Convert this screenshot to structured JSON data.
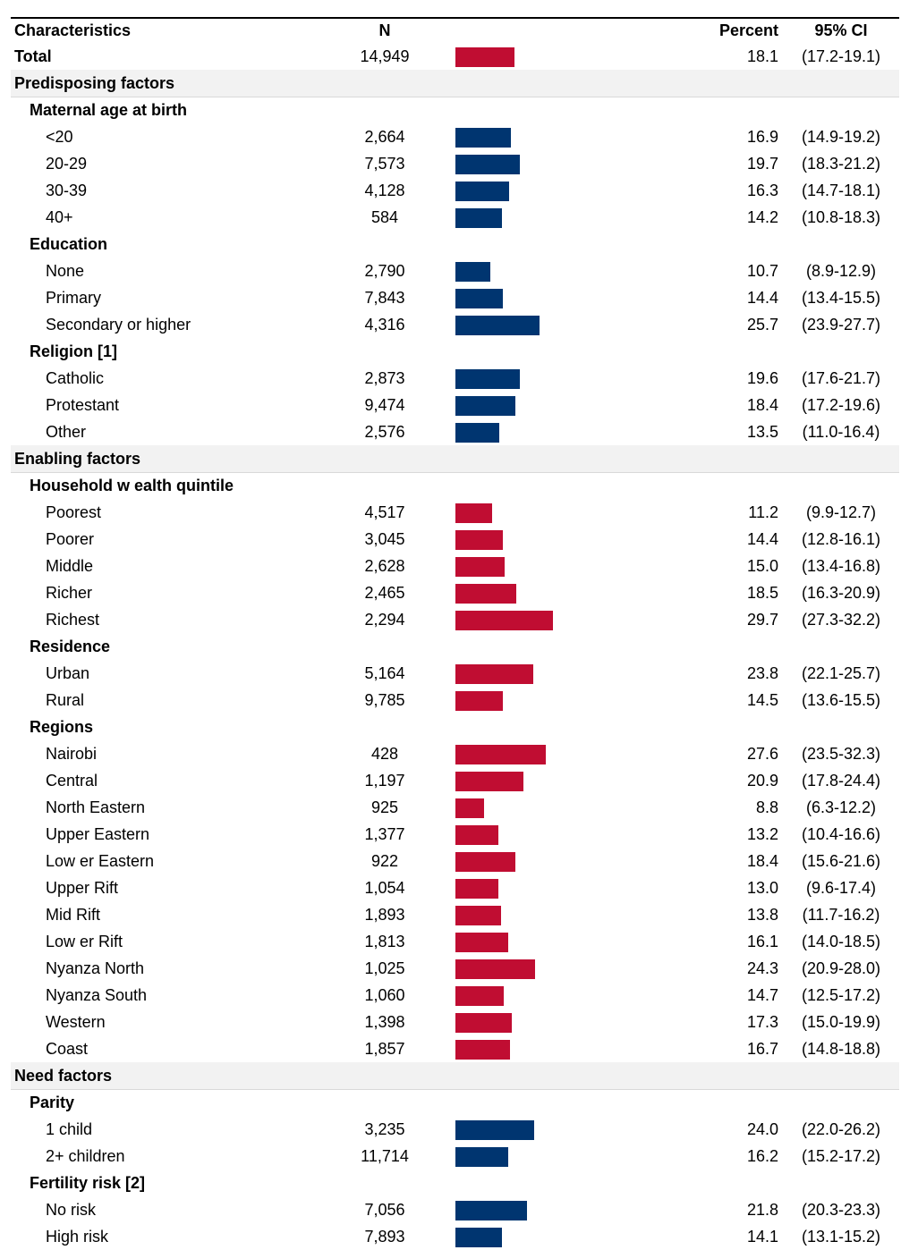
{
  "chart_data": {
    "type": "table",
    "headers": {
      "label": "Characteristics",
      "n": "N",
      "percent": "Percent",
      "ci": "95% CI"
    },
    "colors": {
      "red": "#c00d32",
      "blue": "#003570"
    },
    "rows": [
      {
        "kind": "total",
        "label": "Total",
        "n": "14,949",
        "value": 18.1,
        "ci": "(17.2-19.1)",
        "color": "red"
      },
      {
        "kind": "section",
        "label": "Predisposing factors"
      },
      {
        "kind": "group",
        "label": "Maternal age at birth"
      },
      {
        "kind": "item",
        "label": "<20",
        "n": "2,664",
        "value": 16.9,
        "ci": "(14.9-19.2)",
        "color": "blue"
      },
      {
        "kind": "item",
        "label": "20-29",
        "n": "7,573",
        "value": 19.7,
        "ci": "(18.3-21.2)",
        "color": "blue"
      },
      {
        "kind": "item",
        "label": "30-39",
        "n": "4,128",
        "value": 16.3,
        "ci": "(14.7-18.1)",
        "color": "blue"
      },
      {
        "kind": "item",
        "label": "40+",
        "n": "584",
        "value": 14.2,
        "ci": "(10.8-18.3)",
        "color": "blue"
      },
      {
        "kind": "group",
        "label": "Education"
      },
      {
        "kind": "item",
        "label": "None",
        "n": "2,790",
        "value": 10.7,
        "ci": "(8.9-12.9)",
        "color": "blue"
      },
      {
        "kind": "item",
        "label": "Primary",
        "n": "7,843",
        "value": 14.4,
        "ci": "(13.4-15.5)",
        "color": "blue"
      },
      {
        "kind": "item",
        "label": "Secondary or higher",
        "n": "4,316",
        "value": 25.7,
        "ci": "(23.9-27.7)",
        "color": "blue"
      },
      {
        "kind": "group",
        "label": "Religion [1]"
      },
      {
        "kind": "item",
        "label": "Catholic",
        "n": "2,873",
        "value": 19.6,
        "ci": "(17.6-21.7)",
        "color": "blue"
      },
      {
        "kind": "item",
        "label": "Protestant",
        "n": "9,474",
        "value": 18.4,
        "ci": "(17.2-19.6)",
        "color": "blue"
      },
      {
        "kind": "item",
        "label": "Other",
        "n": "2,576",
        "value": 13.5,
        "ci": "(11.0-16.4)",
        "color": "blue"
      },
      {
        "kind": "section",
        "label": "Enabling factors"
      },
      {
        "kind": "group",
        "label": "Household w ealth quintile"
      },
      {
        "kind": "item",
        "label": "Poorest",
        "n": "4,517",
        "value": 11.2,
        "ci": "(9.9-12.7)",
        "color": "red"
      },
      {
        "kind": "item",
        "label": "Poorer",
        "n": "3,045",
        "value": 14.4,
        "ci": "(12.8-16.1)",
        "color": "red"
      },
      {
        "kind": "item",
        "label": "Middle",
        "n": "2,628",
        "value": 15.0,
        "ci": "(13.4-16.8)",
        "color": "red"
      },
      {
        "kind": "item",
        "label": "Richer",
        "n": "2,465",
        "value": 18.5,
        "ci": "(16.3-20.9)",
        "color": "red"
      },
      {
        "kind": "item",
        "label": "Richest",
        "n": "2,294",
        "value": 29.7,
        "ci": "(27.3-32.2)",
        "color": "red"
      },
      {
        "kind": "group",
        "label": "Residence"
      },
      {
        "kind": "item",
        "label": "Urban",
        "n": "5,164",
        "value": 23.8,
        "ci": "(22.1-25.7)",
        "color": "red"
      },
      {
        "kind": "item",
        "label": "Rural",
        "n": "9,785",
        "value": 14.5,
        "ci": "(13.6-15.5)",
        "color": "red"
      },
      {
        "kind": "group",
        "label": "Regions"
      },
      {
        "kind": "item",
        "label": "Nairobi",
        "n": "428",
        "value": 27.6,
        "ci": "(23.5-32.3)",
        "color": "red"
      },
      {
        "kind": "item",
        "label": "Central",
        "n": "1,197",
        "value": 20.9,
        "ci": "(17.8-24.4)",
        "color": "red"
      },
      {
        "kind": "item",
        "label": "North Eastern",
        "n": "925",
        "value": 8.8,
        "ci": "(6.3-12.2)",
        "color": "red"
      },
      {
        "kind": "item",
        "label": "Upper Eastern",
        "n": "1,377",
        "value": 13.2,
        "ci": "(10.4-16.6)",
        "color": "red"
      },
      {
        "kind": "item",
        "label": "Low er Eastern",
        "n": "922",
        "value": 18.4,
        "ci": "(15.6-21.6)",
        "color": "red"
      },
      {
        "kind": "item",
        "label": "Upper Rift",
        "n": "1,054",
        "value": 13.0,
        "ci": "(9.6-17.4)",
        "color": "red"
      },
      {
        "kind": "item",
        "label": "Mid Rift",
        "n": "1,893",
        "value": 13.8,
        "ci": "(11.7-16.2)",
        "color": "red"
      },
      {
        "kind": "item",
        "label": "Low er Rift",
        "n": "1,813",
        "value": 16.1,
        "ci": "(14.0-18.5)",
        "color": "red"
      },
      {
        "kind": "item",
        "label": "Nyanza North",
        "n": "1,025",
        "value": 24.3,
        "ci": "(20.9-28.0)",
        "color": "red"
      },
      {
        "kind": "item",
        "label": "Nyanza South",
        "n": "1,060",
        "value": 14.7,
        "ci": "(12.5-17.2)",
        "color": "red"
      },
      {
        "kind": "item",
        "label": "Western",
        "n": "1,398",
        "value": 17.3,
        "ci": "(15.0-19.9)",
        "color": "red"
      },
      {
        "kind": "item",
        "label": "Coast",
        "n": "1,857",
        "value": 16.7,
        "ci": "(14.8-18.8)",
        "color": "red"
      },
      {
        "kind": "section",
        "label": "Need factors"
      },
      {
        "kind": "group",
        "label": "Parity"
      },
      {
        "kind": "item",
        "label": "1 child",
        "n": "3,235",
        "value": 24.0,
        "ci": "(22.0-26.2)",
        "color": "blue"
      },
      {
        "kind": "item",
        "label": "2+ children",
        "n": "11,714",
        "value": 16.2,
        "ci": "(15.2-17.2)",
        "color": "blue"
      },
      {
        "kind": "group",
        "label": "Fertility risk [2]"
      },
      {
        "kind": "item",
        "label": "No risk",
        "n": "7,056",
        "value": 21.8,
        "ci": "(20.3-23.3)",
        "color": "blue"
      },
      {
        "kind": "item",
        "label": "High risk",
        "n": "7,893",
        "value": 14.1,
        "ci": "(13.1-15.2)",
        "color": "blue"
      }
    ]
  }
}
